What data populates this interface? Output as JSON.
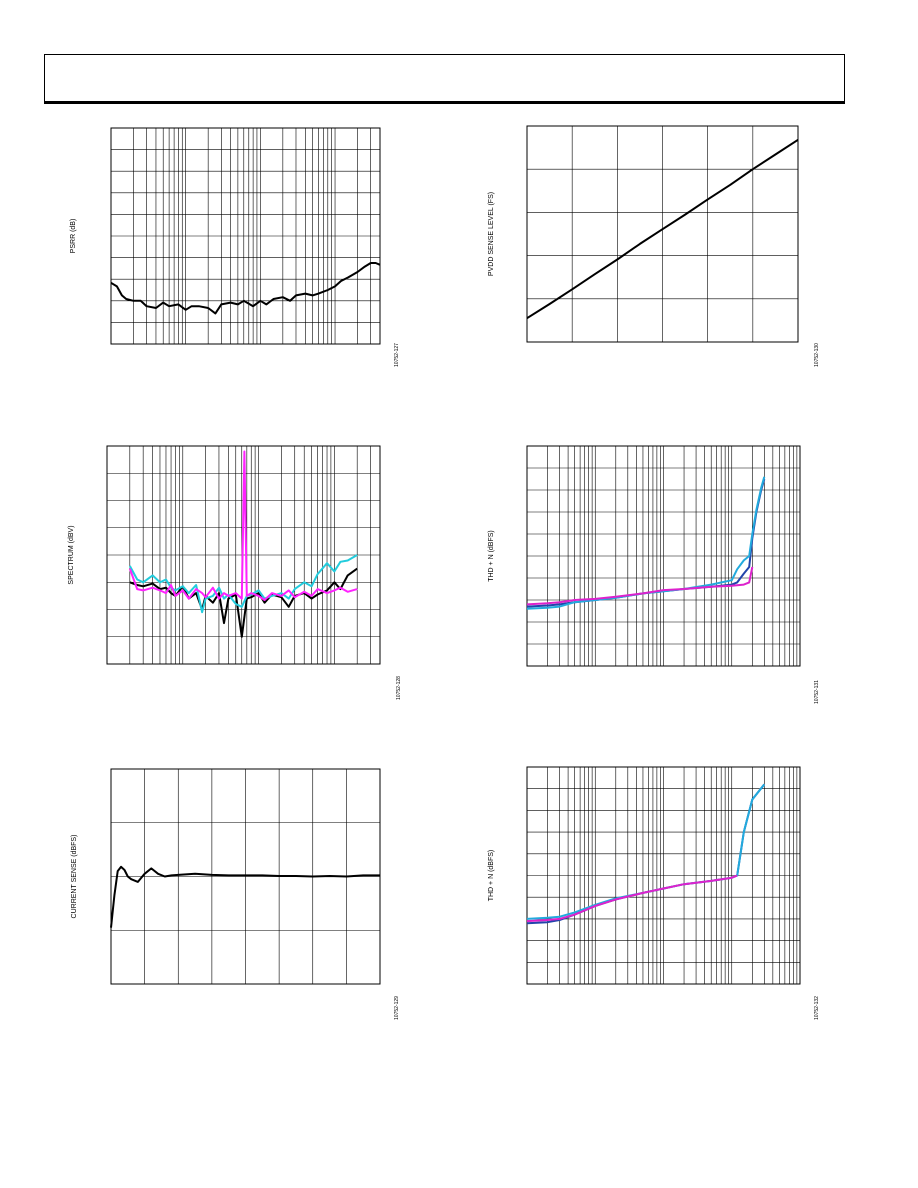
{
  "header": {},
  "chart_data": [
    {
      "id": "psrr",
      "type": "line",
      "ylabel": "PSRR (dB)",
      "figure_id": "10752-127",
      "x_scale": "log",
      "xlim": [
        10,
        40000
      ],
      "ylim": [
        -12,
        0
      ],
      "grid": true,
      "series": [
        {
          "color": "#000000",
          "x": [
            10,
            12,
            14,
            16,
            20,
            25,
            30,
            40,
            50,
            60,
            80,
            100,
            120,
            150,
            200,
            250,
            300,
            400,
            500,
            600,
            800,
            1000,
            1200,
            1500,
            2000,
            2500,
            3000,
            4000,
            5000,
            6000,
            8000,
            10000,
            12000,
            15000,
            20000,
            25000,
            30000,
            35000,
            40000
          ],
          "y": [
            -8.6,
            -8.8,
            -9.3,
            -9.5,
            -9.6,
            -9.6,
            -9.9,
            -10.0,
            -9.7,
            -9.9,
            -9.8,
            -10.1,
            -9.9,
            -9.9,
            -10.0,
            -10.3,
            -9.8,
            -9.7,
            -9.8,
            -9.6,
            -9.9,
            -9.6,
            -9.8,
            -9.5,
            -9.4,
            -9.6,
            -9.3,
            -9.2,
            -9.3,
            -9.2,
            -9.0,
            -8.8,
            -8.5,
            -8.3,
            -8.0,
            -7.7,
            -7.5,
            -7.5,
            -7.6
          ]
        }
      ]
    },
    {
      "id": "pvdd",
      "type": "line",
      "ylabel": "PVDD SENSE LEVEL (FS)",
      "figure_id": "10752-130",
      "xlim": [
        0,
        6
      ],
      "ylim": [
        0,
        5
      ],
      "grid": true,
      "series": [
        {
          "color": "#000000",
          "x": [
            0,
            0.5,
            1,
            1.5,
            2,
            2.5,
            3,
            3.5,
            4,
            4.5,
            5,
            5.5,
            6
          ],
          "y": [
            0.55,
            0.88,
            1.22,
            1.57,
            1.91,
            2.27,
            2.61,
            2.95,
            3.3,
            3.64,
            4.0,
            4.34,
            4.68
          ]
        }
      ]
    },
    {
      "id": "spectrum",
      "type": "line",
      "ylabel": "SPECTRUM (dBV)",
      "figure_id": "10752-128",
      "x_scale": "log",
      "xlim": [
        10,
        40000
      ],
      "ylim": [
        -160,
        0
      ],
      "grid": true,
      "series": [
        {
          "color": "#000000",
          "x": [
            20,
            25,
            30,
            40,
            50,
            60,
            70,
            80,
            100,
            120,
            150,
            180,
            200,
            250,
            300,
            350,
            400,
            500,
            600,
            700,
            800,
            1000,
            1200,
            1500,
            2000,
            2500,
            3000,
            4000,
            5000,
            6000,
            8000,
            10000,
            12000,
            15000,
            20000
          ],
          "y": [
            -100,
            -102,
            -103,
            -101,
            -105,
            -104,
            -108,
            -110,
            -103,
            -112,
            -108,
            -120,
            -110,
            -115,
            -108,
            -130,
            -112,
            -109,
            -140,
            -112,
            -111,
            -108,
            -115,
            -109,
            -111,
            -118,
            -110,
            -108,
            -112,
            -109,
            -106,
            -100,
            -105,
            -95,
            -90
          ]
        },
        {
          "color": "#22ccdd",
          "x": [
            20,
            25,
            30,
            40,
            50,
            60,
            70,
            80,
            100,
            120,
            150,
            180,
            200,
            250,
            300,
            350,
            400,
            500,
            600,
            700,
            800,
            1000,
            1200,
            1500,
            2000,
            2500,
            3000,
            4000,
            5000,
            6000,
            8000,
            10000,
            12000,
            15000,
            20000
          ],
          "y": [
            -88,
            -98,
            -100,
            -95,
            -100,
            -98,
            -104,
            -106,
            -103,
            -108,
            -102,
            -122,
            -112,
            -110,
            -104,
            -112,
            -109,
            -116,
            -118,
            -110,
            -109,
            -106,
            -112,
            -110,
            -108,
            -112,
            -105,
            -100,
            -103,
            -94,
            -86,
            -92,
            -85,
            -84,
            -80
          ]
        },
        {
          "color": "#ff22ff",
          "x": [
            20,
            25,
            30,
            40,
            50,
            60,
            70,
            80,
            100,
            120,
            150,
            180,
            200,
            250,
            300,
            350,
            400,
            500,
            600,
            650,
            700,
            800,
            1000,
            1200,
            1500,
            2000,
            2500,
            3000,
            4000,
            5000,
            6000,
            8000,
            10000,
            12000,
            15000,
            20000
          ],
          "y": [
            -90,
            -105,
            -106,
            -104,
            -106,
            -108,
            -102,
            -110,
            -106,
            -112,
            -105,
            -108,
            -111,
            -104,
            -112,
            -108,
            -110,
            -108,
            -112,
            -4,
            -110,
            -108,
            -110,
            -113,
            -108,
            -110,
            -106,
            -111,
            -107,
            -110,
            -105,
            -108,
            -106,
            -104,
            -107,
            -105
          ]
        }
      ]
    },
    {
      "id": "thdn1",
      "type": "line",
      "ylabel": "THD + N (dBFS)",
      "figure_id": "10752-131",
      "x_scale": "log",
      "xlim": [
        0.001,
        10
      ],
      "ylim": [
        -100,
        0
      ],
      "grid": true,
      "series": [
        {
          "color": "#2244aa",
          "x": [
            0.001,
            0.002,
            0.003,
            0.005,
            0.01,
            0.02,
            0.05,
            0.1,
            0.2,
            0.5,
            1,
            1.2,
            1.5,
            1.8,
            2,
            2.3,
            2.7,
            3
          ],
          "y": [
            -73,
            -72.5,
            -72,
            -71,
            -70,
            -69,
            -67,
            -66,
            -65,
            -64,
            -63,
            -62,
            -58,
            -55,
            -42,
            -30,
            -20,
            -15
          ]
        },
        {
          "color": "#22aadd",
          "x": [
            0.001,
            0.002,
            0.003,
            0.005,
            0.01,
            0.02,
            0.05,
            0.1,
            0.2,
            0.5,
            1,
            1.2,
            1.5,
            1.8,
            2,
            2.3,
            2.7,
            3
          ],
          "y": [
            -74,
            -73.5,
            -73,
            -71,
            -70,
            -69,
            -67,
            -66,
            -65,
            -63,
            -61,
            -56,
            -52,
            -50,
            -40,
            -29,
            -19,
            -14
          ]
        },
        {
          "color": "#dd22cc",
          "x": [
            0.001,
            0.002,
            0.003,
            0.005,
            0.01,
            0.02,
            0.05,
            0.1,
            0.2,
            0.5,
            1,
            1.5,
            1.8,
            2
          ],
          "y": [
            -72,
            -71.5,
            -71,
            -70,
            -69.5,
            -68.5,
            -67,
            -65.5,
            -65,
            -64,
            -63.5,
            -63,
            -62,
            -55
          ]
        }
      ]
    },
    {
      "id": "current",
      "type": "line",
      "ylabel": "CURRENT SENSE (dBFS)",
      "figure_id": "10752-129",
      "xlim": [
        0,
        8
      ],
      "ylim": [
        -4,
        0
      ],
      "grid": true,
      "series": [
        {
          "color": "#000000",
          "x": [
            0,
            0.1,
            0.2,
            0.3,
            0.4,
            0.5,
            0.6,
            0.8,
            1.0,
            1.2,
            1.4,
            1.6,
            1.8,
            2.0,
            2.5,
            3.0,
            3.5,
            4.0,
            4.5,
            5.0,
            5.5,
            6.0,
            6.5,
            7.0,
            7.5,
            8.0
          ],
          "y": [
            -2.95,
            -2.35,
            -1.9,
            -1.82,
            -1.88,
            -2.0,
            -2.05,
            -2.1,
            -1.95,
            -1.85,
            -1.95,
            -2.0,
            -1.98,
            -1.97,
            -1.95,
            -1.97,
            -1.98,
            -1.98,
            -1.98,
            -1.99,
            -1.99,
            -2.0,
            -1.99,
            -2.0,
            -1.98,
            -1.98
          ]
        }
      ]
    },
    {
      "id": "thdn2",
      "type": "line",
      "ylabel": "THD + N (dBFS)",
      "figure_id": "10752-132",
      "x_scale": "log",
      "xlim": [
        0.001,
        10
      ],
      "ylim": [
        -100,
        0
      ],
      "grid": true,
      "series": [
        {
          "color": "#2244aa",
          "x": [
            0.001,
            0.002,
            0.003,
            0.005,
            0.01,
            0.02,
            0.05,
            0.1,
            0.2,
            0.5,
            1,
            1.2,
            1.5,
            2,
            3
          ],
          "y": [
            -72,
            -71.5,
            -70.5,
            -68,
            -64,
            -61,
            -58,
            -56,
            -54,
            -52.5,
            -51,
            -50,
            -30,
            -15,
            -8
          ]
        },
        {
          "color": "#22aadd",
          "x": [
            0.001,
            0.002,
            0.003,
            0.005,
            0.01,
            0.02,
            0.05,
            0.1,
            0.2,
            0.5,
            1,
            1.2,
            1.5,
            2,
            3
          ],
          "y": [
            -70,
            -69.5,
            -69,
            -67,
            -63.5,
            -60.5,
            -58,
            -56,
            -54,
            -52.5,
            -51,
            -50,
            -30,
            -15,
            -8
          ]
        },
        {
          "color": "#dd22cc",
          "x": [
            0.001,
            0.002,
            0.003,
            0.005,
            0.01,
            0.02,
            0.05,
            0.1,
            0.2,
            0.5,
            1,
            1.2
          ],
          "y": [
            -71,
            -70.5,
            -70,
            -68,
            -64,
            -61,
            -58,
            -56,
            -54,
            -52.5,
            -51,
            -50
          ]
        }
      ]
    }
  ]
}
